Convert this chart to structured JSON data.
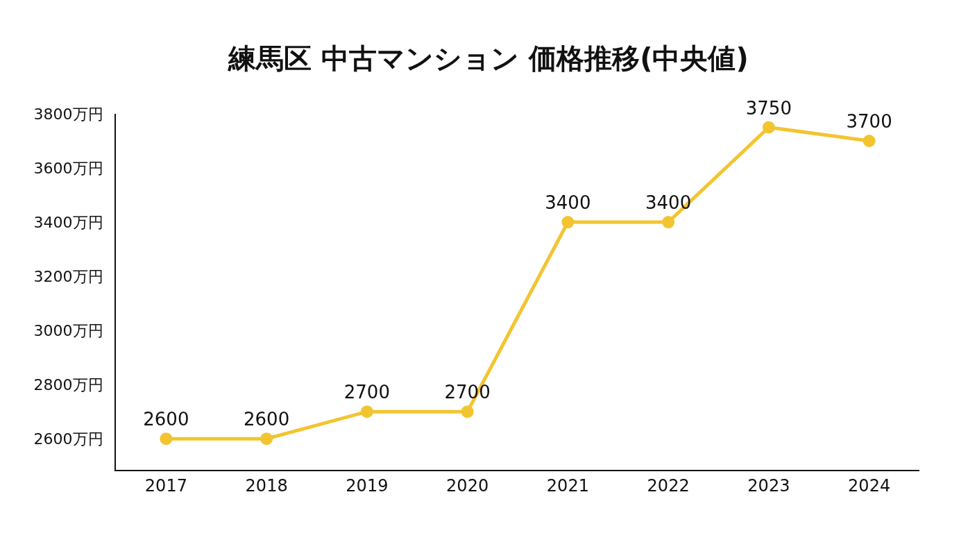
{
  "chart_data": {
    "type": "line",
    "title": "練馬区 中古マンション 価格推移(中央値)",
    "categories": [
      "2017",
      "2018",
      "2019",
      "2020",
      "2021",
      "2022",
      "2023",
      "2024"
    ],
    "series": [
      {
        "color": "#f2c530",
        "values": [
          2600,
          2600,
          2700,
          2700,
          3400,
          3400,
          3750,
          3700
        ]
      }
    ],
    "ylim": [
      2485,
      3800
    ],
    "yticks": [
      {
        "value": 2600,
        "label": "2600万円"
      },
      {
        "value": 2800,
        "label": "2800万円"
      },
      {
        "value": 3000,
        "label": "3000万円"
      },
      {
        "value": 3200,
        "label": "3200万円"
      },
      {
        "value": 3400,
        "label": "3400万円"
      },
      {
        "value": 3600,
        "label": "3600万円"
      },
      {
        "value": 3800,
        "label": "3800万円"
      }
    ],
    "data_labels": true,
    "marker": "circle",
    "line_style": "solid",
    "legend": false
  }
}
